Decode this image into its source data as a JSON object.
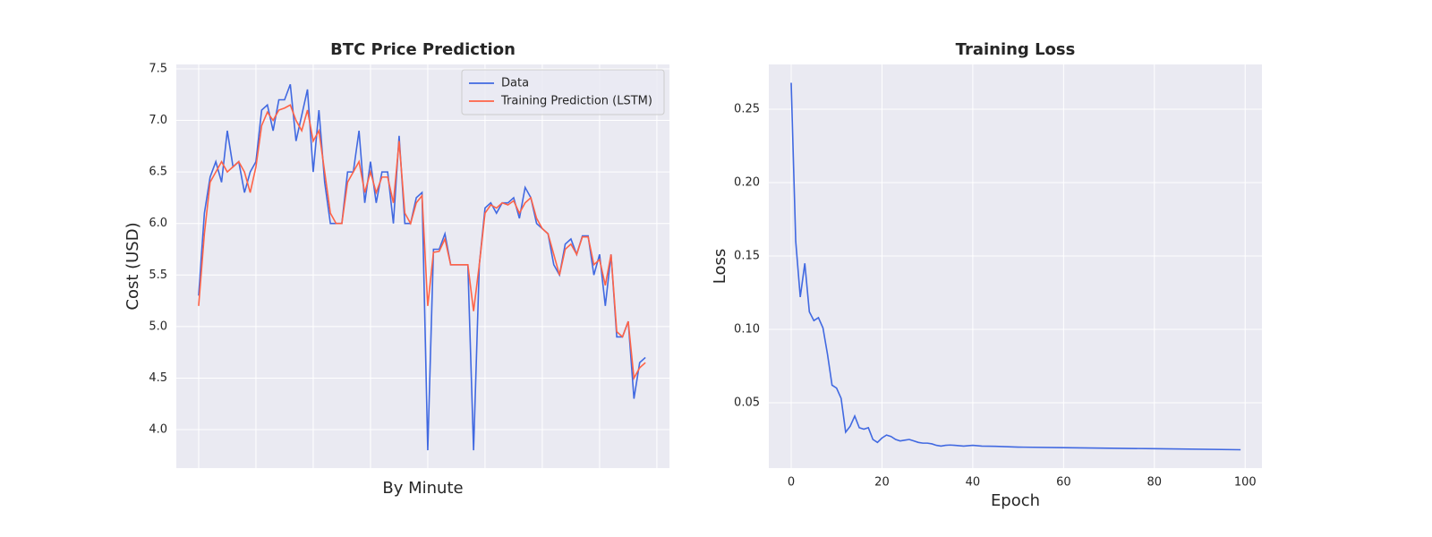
{
  "chart_data": [
    {
      "type": "line",
      "title": "BTC Price Prediction",
      "xlabel": "By Minute",
      "ylabel": "Cost (USD)",
      "x": [
        0,
        5,
        10,
        15,
        20,
        25,
        30,
        35,
        40,
        45,
        50,
        55,
        60,
        65,
        70,
        75,
        80,
        85,
        90,
        95,
        100,
        105,
        110,
        115,
        120,
        125,
        130,
        135,
        140,
        145,
        150,
        155,
        160,
        165,
        170,
        175,
        180,
        185,
        190,
        195,
        200,
        205,
        210,
        215,
        220,
        225,
        230,
        235,
        240,
        245,
        250,
        255,
        260,
        265,
        270,
        275,
        280,
        285,
        290,
        295,
        300,
        305,
        310,
        315,
        320,
        325,
        330,
        335,
        340,
        345,
        350,
        355,
        360,
        365,
        370,
        375,
        380,
        385,
        390
      ],
      "series": [
        {
          "name": "Data",
          "color": "#4169e1",
          "values": [
            5.3,
            6.1,
            6.45,
            6.6,
            6.4,
            6.9,
            6.55,
            6.6,
            6.3,
            6.5,
            6.6,
            7.1,
            7.15,
            6.9,
            7.2,
            7.2,
            7.35,
            6.8,
            7.05,
            7.3,
            6.5,
            7.1,
            6.4,
            6.0,
            6.0,
            6.0,
            6.5,
            6.5,
            6.9,
            6.2,
            6.6,
            6.2,
            6.5,
            6.5,
            6.0,
            6.85,
            6.0,
            6.0,
            6.25,
            6.3,
            3.8,
            5.75,
            5.75,
            5.9,
            5.6,
            5.6,
            5.6,
            5.6,
            3.8,
            5.6,
            6.15,
            6.2,
            6.1,
            6.2,
            6.2,
            6.25,
            6.05,
            6.35,
            6.25,
            6.0,
            5.95,
            5.9,
            5.6,
            5.5,
            5.8,
            5.85,
            5.7,
            5.88,
            5.88,
            5.5,
            5.7,
            5.2,
            5.7,
            4.9,
            4.9,
            5.05,
            4.3,
            4.65,
            4.7
          ]
        },
        {
          "name": "Training Prediction (LSTM)",
          "color": "#ff6347",
          "values": [
            5.2,
            5.9,
            6.4,
            6.5,
            6.6,
            6.5,
            6.55,
            6.6,
            6.5,
            6.3,
            6.55,
            6.95,
            7.08,
            7.0,
            7.1,
            7.12,
            7.15,
            7.0,
            6.9,
            7.1,
            6.8,
            6.9,
            6.5,
            6.1,
            6.0,
            6.0,
            6.4,
            6.5,
            6.6,
            6.3,
            6.5,
            6.3,
            6.45,
            6.45,
            6.2,
            6.8,
            6.1,
            6.0,
            6.2,
            6.27,
            5.2,
            5.72,
            5.73,
            5.85,
            5.6,
            5.6,
            5.6,
            5.6,
            5.15,
            5.6,
            6.1,
            6.18,
            6.15,
            6.2,
            6.18,
            6.22,
            6.1,
            6.2,
            6.25,
            6.05,
            5.95,
            5.9,
            5.7,
            5.5,
            5.75,
            5.8,
            5.7,
            5.87,
            5.87,
            5.6,
            5.65,
            5.4,
            5.7,
            4.95,
            4.9,
            5.05,
            4.5,
            4.6,
            4.65
          ]
        }
      ],
      "xlim": [
        -19.5,
        411
      ],
      "xticks": [
        0,
        50,
        100,
        150,
        200,
        250,
        300,
        350,
        400
      ],
      "xtick_labels": false,
      "ylim": [
        3.627,
        7.543
      ],
      "yticks": [
        {
          "value": 4,
          "label": "4.0"
        },
        4.5,
        {
          "value": 5,
          "label": "5.0"
        },
        5.5,
        {
          "value": 6,
          "label": "6.0"
        },
        6.5,
        {
          "value": 7,
          "label": "7.0"
        },
        7.5
      ],
      "grid": true,
      "legend": "upper right"
    },
    {
      "type": "line",
      "title": "Training Loss",
      "xlabel": "Epoch",
      "ylabel": "Loss",
      "x": [
        0,
        1,
        2,
        3,
        4,
        5,
        6,
        7,
        8,
        9,
        10,
        11,
        12,
        13,
        14,
        15,
        16,
        17,
        18,
        19,
        20,
        21,
        22,
        23,
        24,
        25,
        26,
        27,
        28,
        29,
        30,
        31,
        32,
        33,
        34,
        35,
        36,
        38,
        40,
        42,
        45,
        50,
        60,
        80,
        99
      ],
      "series": [
        {
          "name": "Loss",
          "color": "#4169e1",
          "values": [
            0.268,
            0.16,
            0.122,
            0.145,
            0.112,
            0.106,
            0.108,
            0.101,
            0.083,
            0.062,
            0.06,
            0.053,
            0.03,
            0.034,
            0.041,
            0.033,
            0.032,
            0.033,
            0.025,
            0.023,
            0.026,
            0.028,
            0.027,
            0.025,
            0.024,
            0.0245,
            0.025,
            0.024,
            0.023,
            0.0225,
            0.0225,
            0.022,
            0.021,
            0.0205,
            0.021,
            0.0212,
            0.021,
            0.0205,
            0.021,
            0.0205,
            0.0203,
            0.0198,
            0.0194,
            0.0187,
            0.018
          ]
        }
      ],
      "xlim": [
        -4.93,
        103.7
      ],
      "xticks": [
        0,
        20,
        40,
        60,
        80,
        100
      ],
      "ylim": [
        0.0055,
        0.2805
      ],
      "yticks": [
        0.05,
        {
          "value": 0.1,
          "label": "0.10"
        },
        0.15,
        {
          "value": 0.2,
          "label": "0.20"
        },
        0.25
      ],
      "grid": true
    }
  ]
}
